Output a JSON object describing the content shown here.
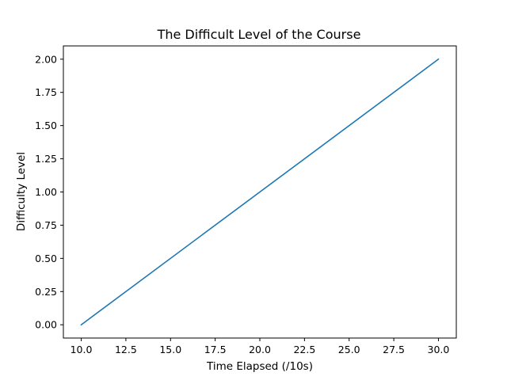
{
  "chart_data": {
    "type": "line",
    "title": "The Difficult Level of the Course",
    "xlabel": "Time Elapsed (/10s)",
    "ylabel": "Difficulty Level",
    "xlim": [
      9.0,
      31.0
    ],
    "ylim": [
      -0.1,
      2.1
    ],
    "x_ticks": [
      10.0,
      12.5,
      15.0,
      17.5,
      20.0,
      22.5,
      25.0,
      27.5,
      30.0
    ],
    "x_tick_labels": [
      "10.0",
      "12.5",
      "15.0",
      "17.5",
      "20.0",
      "22.5",
      "25.0",
      "27.5",
      "30.0"
    ],
    "y_ticks": [
      0.0,
      0.25,
      0.5,
      0.75,
      1.0,
      1.25,
      1.5,
      1.75,
      2.0
    ],
    "y_tick_labels": [
      "0.00",
      "0.25",
      "0.50",
      "0.75",
      "1.00",
      "1.25",
      "1.50",
      "1.75",
      "2.00"
    ],
    "grid": false,
    "series": [
      {
        "color": "#1f77b4",
        "x": [
          10.0,
          30.0
        ],
        "y": [
          0.0,
          2.0
        ]
      }
    ]
  }
}
